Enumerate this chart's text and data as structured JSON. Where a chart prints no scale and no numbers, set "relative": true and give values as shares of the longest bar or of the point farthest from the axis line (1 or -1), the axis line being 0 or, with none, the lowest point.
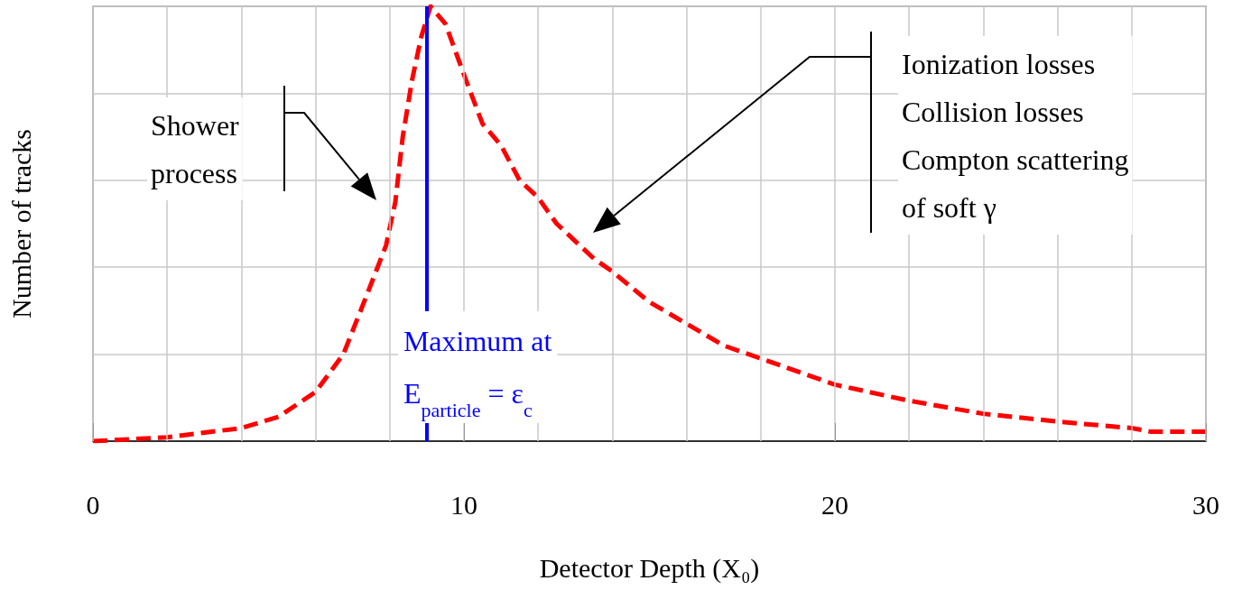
{
  "chart_data": {
    "type": "line",
    "relative": true,
    "xlabel": "Detector Depth (X₀)",
    "ylabel": "Number of tracks",
    "xlim": [
      0,
      30
    ],
    "xticks": [
      0,
      {
        "value": 2,
        "label": null
      },
      {
        "value": 4,
        "label": null
      },
      {
        "value": 6,
        "label": null
      },
      {
        "value": 8,
        "label": null
      },
      10,
      {
        "value": 12,
        "label": null
      },
      {
        "value": 14,
        "label": null
      },
      {
        "value": 16,
        "label": null
      },
      {
        "value": 18,
        "label": null
      },
      20,
      {
        "value": 22,
        "label": null
      },
      {
        "value": 24,
        "label": null
      },
      {
        "value": 26,
        "label": null
      },
      {
        "value": 28,
        "label": null
      },
      30
    ],
    "grid": true,
    "marker": "none",
    "line_style": "dashed",
    "series": [
      {
        "color": "#ff0000",
        "x": [
          0,
          2,
          4,
          5,
          6,
          6.75,
          7.4,
          7.9,
          8.15,
          8.35,
          8.6,
          8.85,
          9.1,
          9.5,
          10.1,
          10.5,
          11,
          11.5,
          12,
          12.5,
          13.5,
          14,
          15,
          16,
          17,
          18,
          19,
          20,
          22,
          24,
          26,
          28,
          28.5,
          30
        ],
        "values": [
          0,
          0.009,
          0.03,
          0.056,
          0.113,
          0.2,
          0.34,
          0.45,
          0.55,
          0.7,
          0.83,
          0.93,
          1.0,
          0.96,
          0.82,
          0.73,
          0.68,
          0.6,
          0.56,
          0.5,
          0.42,
          0.39,
          0.32,
          0.27,
          0.22,
          0.19,
          0.16,
          0.13,
          0.093,
          0.063,
          0.045,
          0.03,
          0.022,
          0.022
        ]
      }
    ],
    "ref_lines": [
      {
        "axis": "x",
        "value": 9,
        "label": "Maximum at\nE$_{particle}$ = ε$_{c}$",
        "color": "#0000ff",
        "line_style": "solid"
      }
    ],
    "annotations": [
      "Shower\nprocess",
      "Ionization losses\nCollision losses\nCompton scattering\nof soft γ"
    ]
  }
}
